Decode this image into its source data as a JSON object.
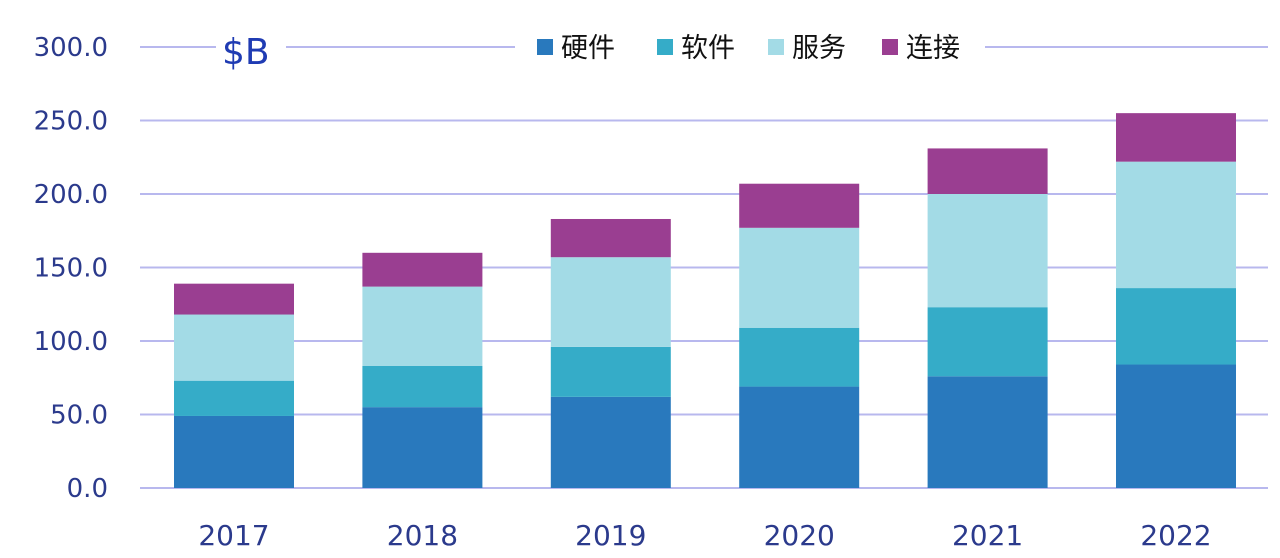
{
  "chart_data": {
    "type": "bar",
    "stacked": true,
    "unit_label": "$B",
    "categories": [
      "2017",
      "2018",
      "2019",
      "2020",
      "2021",
      "2022"
    ],
    "series": [
      {
        "name": "硬件",
        "color": "#2979bd",
        "values": [
          49,
          55,
          62,
          69,
          76,
          84
        ]
      },
      {
        "name": "软件",
        "color": "#35acc8",
        "values": [
          24,
          28,
          34,
          40,
          47,
          52
        ]
      },
      {
        "name": "服务",
        "color": "#a3dbe6",
        "values": [
          45,
          54,
          61,
          68,
          77,
          86
        ]
      },
      {
        "name": "连接",
        "color": "#9a3e91",
        "values": [
          21,
          23,
          26,
          30,
          31,
          33
        ]
      }
    ],
    "ylim": [
      0,
      300
    ],
    "yticks": [
      "0.0",
      "50.0",
      "100.0",
      "150.0",
      "200.0",
      "250.0",
      "300.0"
    ],
    "grid": true,
    "legend_position": "top"
  }
}
